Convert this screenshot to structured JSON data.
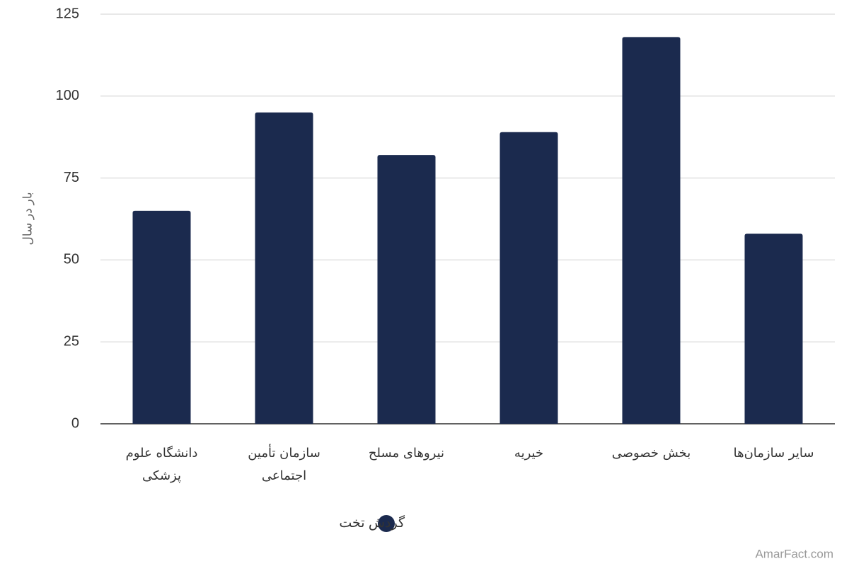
{
  "chart_data": {
    "type": "bar",
    "y_label": "بار در سال",
    "categories": [
      "دانشگاه علوم پزشکی",
      "سازمان تأمین اجتماعی",
      "نیروهای مسلح",
      "خیریه",
      "بخش خصوصی",
      "سایر سازمان‌ها"
    ],
    "series": [
      {
        "name": "گردش تخت",
        "color": "#1b2a4e",
        "values": [
          65,
          95,
          82,
          89,
          118,
          58
        ]
      }
    ],
    "ylim": [
      0,
      125
    ],
    "yticks": [
      0,
      25,
      50,
      75,
      100,
      125
    ],
    "grid": true,
    "legend": "bottom",
    "source": "AmarFact.com"
  }
}
